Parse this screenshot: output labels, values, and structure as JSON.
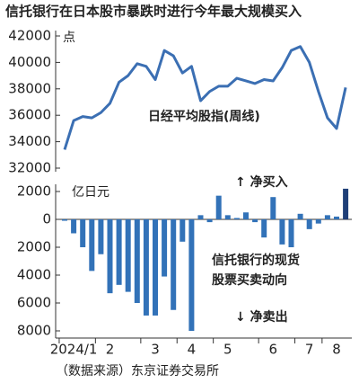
{
  "chart_data": [
    {
      "type": "line",
      "title": "信托银行在日本股市暴跌时进行今年最大规模买入",
      "y_unit": "点",
      "series_label": "日经平均股指(周线)",
      "color": "#3b6fb3",
      "values": [
        33400,
        35600,
        35900,
        35800,
        36200,
        36900,
        38500,
        39000,
        39900,
        39700,
        38700,
        40900,
        40500,
        39200,
        39700,
        37100,
        37800,
        38200,
        38200,
        38800,
        38600,
        38400,
        38700,
        38600,
        39600,
        40900,
        41200,
        40000,
        37800,
        35800,
        35000,
        38100
      ],
      "ylim": [
        32000,
        42000
      ],
      "yticks": [
        32000,
        34000,
        36000,
        38000,
        40000,
        42000
      ]
    },
    {
      "type": "bar",
      "y_unit": "亿日元",
      "buy_label": "↑ 净买入",
      "sell_label": "↓ 净卖出",
      "series_label": [
        "信托银行的现货",
        "股票买卖动向"
      ],
      "source": "（数据来源）东京证券交易所",
      "color": "#3272b8",
      "last_color": "#1f3f78",
      "categories": [
        null,
        "2024/1",
        null,
        null,
        null,
        "2",
        null,
        null,
        null,
        null,
        "3",
        null,
        null,
        null,
        "4",
        null,
        null,
        null,
        "5",
        null,
        null,
        null,
        null,
        "6",
        null,
        null,
        null,
        "7",
        null,
        null,
        "8",
        null
      ],
      "values": [
        -100,
        -1000,
        -2000,
        -3700,
        -2500,
        -5300,
        -4700,
        -5200,
        -6000,
        -6900,
        -6900,
        -4100,
        -6500,
        -1600,
        -8000,
        300,
        -200,
        1700,
        300,
        100,
        500,
        -200,
        -1300,
        1600,
        -1800,
        -2000,
        400,
        -700,
        -300,
        300,
        200,
        2200
      ],
      "ylim": [
        -8000,
        2000
      ],
      "yticks": [
        {
          "value": -8000,
          "label": "8000"
        },
        {
          "value": -6000,
          "label": "6000"
        },
        {
          "value": -4000,
          "label": "4000"
        },
        {
          "value": -2000,
          "label": "2000"
        },
        0,
        2000
      ]
    }
  ]
}
